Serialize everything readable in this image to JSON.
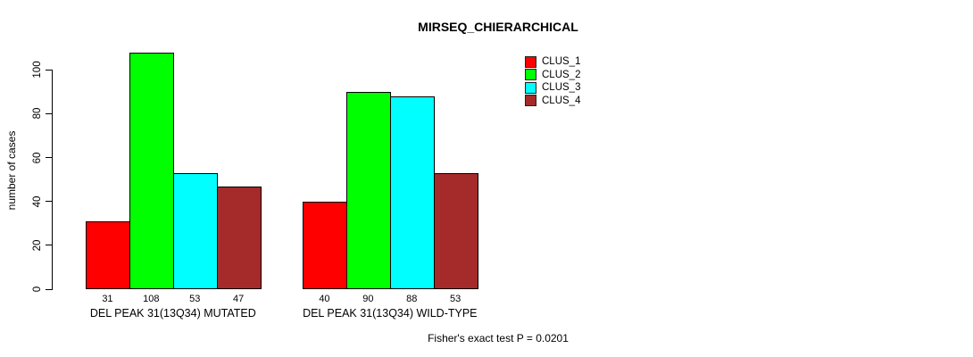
{
  "chart_data": {
    "type": "bar",
    "title": "MIRSEQ_CHIERARCHICAL",
    "ylabel": "number of cases",
    "xlabel": "",
    "yticks": [
      0,
      20,
      40,
      60,
      80,
      100
    ],
    "ylim": [
      0,
      110
    ],
    "grid": false,
    "legend_position": "top-right",
    "categories": [
      "DEL PEAK 31(13Q34) MUTATED",
      "DEL PEAK 31(13Q34) WILD-TYPE"
    ],
    "series": [
      {
        "name": "CLUS_1",
        "color": "#ff0000",
        "values": [
          31,
          40
        ]
      },
      {
        "name": "CLUS_2",
        "color": "#00ff00",
        "values": [
          108,
          90
        ]
      },
      {
        "name": "CLUS_3",
        "color": "#00ffff",
        "values": [
          53,
          88
        ]
      },
      {
        "name": "CLUS_4",
        "color": "#a52a2a",
        "values": [
          47,
          53
        ]
      }
    ],
    "bar_value_labels": [
      [
        31,
        108,
        53,
        47
      ],
      [
        40,
        90,
        88,
        53
      ]
    ],
    "annotation": "Fisher's exact test P = 0.0201"
  },
  "colors": {
    "background": "#ffffff",
    "axis": "#000000",
    "text": "#000000"
  }
}
